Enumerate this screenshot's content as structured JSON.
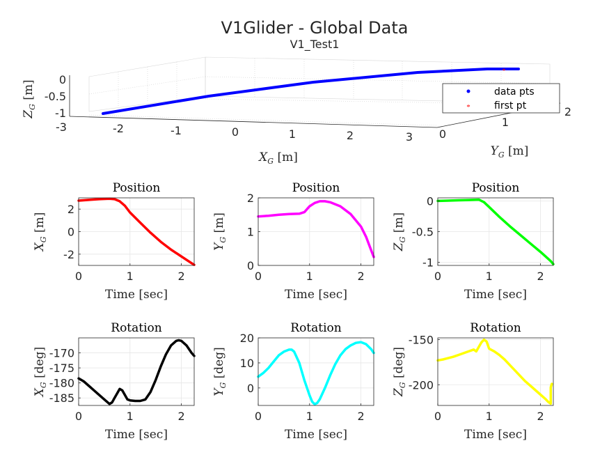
{
  "figure": {
    "title": "V1Glider - Global Data",
    "subtitle": "V1_Test1"
  },
  "plot3d": {
    "xlabel_main": "X",
    "xlabel_sub": "G",
    "xlabel_unit": " [m]",
    "ylabel_main": "Y",
    "ylabel_sub": "G",
    "ylabel_unit": " [m]",
    "zlabel_main": "Z",
    "zlabel_sub": "G",
    "zlabel_unit": " [m]",
    "x_ticks": [
      "-3",
      "-2",
      "-1",
      "0",
      "1",
      "2",
      "3"
    ],
    "y_ticks": [
      "0",
      "1",
      "2"
    ],
    "z_ticks": [
      "0",
      "-0.5",
      "-1"
    ],
    "legend": {
      "data_label": "data pts",
      "first_label": "first pt",
      "position": "top-right"
    },
    "colors": {
      "data": "#0000ff",
      "first": "#ff0000"
    }
  },
  "chart_data": [
    {
      "type": "scatter",
      "title": "Position",
      "xlabel": "Time [sec]",
      "ylabel_main": "X",
      "ylabel_sub": "G",
      "ylabel_unit": " [m]",
      "xlim": [
        0,
        2.25
      ],
      "ylim": [
        -3,
        3
      ],
      "x_ticks": [
        "0",
        "1",
        "2"
      ],
      "y_ticks": [
        "2",
        "0",
        "-2"
      ],
      "color": "#ff0000",
      "x": [
        0,
        0.2,
        0.4,
        0.6,
        0.7,
        0.8,
        0.9,
        1.0,
        1.2,
        1.4,
        1.6,
        1.8,
        2.0,
        2.2,
        2.25
      ],
      "y": [
        2.75,
        2.82,
        2.88,
        2.92,
        2.88,
        2.7,
        2.3,
        1.7,
        0.8,
        -0.1,
        -0.9,
        -1.6,
        -2.2,
        -2.8,
        -2.95
      ]
    },
    {
      "type": "scatter",
      "title": "Position",
      "xlabel": "Time [sec]",
      "ylabel_main": "Y",
      "ylabel_sub": "G",
      "ylabel_unit": " [m]",
      "xlim": [
        0,
        2.25
      ],
      "ylim": [
        0,
        2
      ],
      "x_ticks": [
        "0",
        "1",
        "2"
      ],
      "y_ticks": [
        "2",
        "1",
        "0"
      ],
      "color": "#ff00ff",
      "x": [
        0,
        0.2,
        0.4,
        0.6,
        0.8,
        0.9,
        1.0,
        1.1,
        1.2,
        1.3,
        1.4,
        1.6,
        1.8,
        2.0,
        2.1,
        2.2,
        2.25
      ],
      "y": [
        1.45,
        1.47,
        1.5,
        1.52,
        1.53,
        1.58,
        1.75,
        1.85,
        1.9,
        1.9,
        1.87,
        1.75,
        1.52,
        1.15,
        0.85,
        0.45,
        0.25
      ]
    },
    {
      "type": "scatter",
      "title": "Position",
      "xlabel": "Time [sec]",
      "ylabel_main": "Z",
      "ylabel_sub": "G",
      "ylabel_unit": " [m]",
      "xlim": [
        0,
        2.25
      ],
      "ylim": [
        -1.05,
        0.05
      ],
      "x_ticks": [
        "0",
        "1",
        "2"
      ],
      "y_ticks": [
        "0",
        "-0.5",
        "-1"
      ],
      "color": "#00ff00",
      "x": [
        0,
        0.2,
        0.4,
        0.6,
        0.8,
        0.9,
        1.0,
        1.2,
        1.4,
        1.6,
        1.8,
        2.0,
        2.2,
        2.25
      ],
      "y": [
        0,
        0.005,
        0.01,
        0.015,
        0.02,
        -0.02,
        -0.1,
        -0.26,
        -0.41,
        -0.55,
        -0.69,
        -0.83,
        -0.98,
        -1.03
      ]
    },
    {
      "type": "scatter",
      "title": "Rotation",
      "xlabel": "Time [sec]",
      "ylabel_main": "X",
      "ylabel_sub": "G",
      "ylabel_unit": " [deg]",
      "xlim": [
        0,
        2.25
      ],
      "ylim": [
        -187.5,
        -165
      ],
      "x_ticks": [
        "0",
        "1",
        "2"
      ],
      "y_ticks": [
        "-170",
        "-175",
        "-180",
        "-185"
      ],
      "color": "#000000",
      "x": [
        0,
        0.1,
        0.2,
        0.3,
        0.4,
        0.5,
        0.6,
        0.65,
        0.7,
        0.75,
        0.8,
        0.85,
        0.9,
        0.95,
        1.0,
        1.1,
        1.2,
        1.3,
        1.4,
        1.5,
        1.6,
        1.7,
        1.8,
        1.9,
        1.95,
        2.0,
        2.1,
        2.2,
        2.25
      ],
      "y": [
        -178.5,
        -179.5,
        -181,
        -182.5,
        -184,
        -185.5,
        -187,
        -186.5,
        -185,
        -183.5,
        -182,
        -182.5,
        -184,
        -185.5,
        -185.8,
        -186,
        -186,
        -185.5,
        -183,
        -179,
        -174.5,
        -170.5,
        -167.5,
        -166,
        -165.8,
        -166,
        -167.5,
        -170,
        -171
      ]
    },
    {
      "type": "scatter",
      "title": "Rotation",
      "xlabel": "Time [sec]",
      "ylabel_main": "Y",
      "ylabel_sub": "G",
      "ylabel_unit": " [deg]",
      "xlim": [
        0,
        2.25
      ],
      "ylim": [
        -7,
        20
      ],
      "x_ticks": [
        "0",
        "1",
        "2"
      ],
      "y_ticks": [
        "20",
        "10",
        "0"
      ],
      "color": "#00ffff",
      "x": [
        0,
        0.1,
        0.2,
        0.3,
        0.4,
        0.5,
        0.6,
        0.65,
        0.7,
        0.8,
        0.9,
        1.0,
        1.05,
        1.1,
        1.15,
        1.2,
        1.3,
        1.4,
        1.5,
        1.6,
        1.7,
        1.8,
        1.9,
        2.0,
        2.1,
        2.2,
        2.25
      ],
      "y": [
        4.5,
        6,
        8,
        10.5,
        13,
        14.5,
        15.3,
        15.3,
        14.5,
        10,
        3,
        -3,
        -5.5,
        -6.5,
        -6,
        -4.5,
        0,
        5,
        9.5,
        13,
        15.5,
        17,
        18,
        18.3,
        17.5,
        15.5,
        14
      ]
    },
    {
      "type": "scatter",
      "title": "Rotation",
      "xlabel": "Time [sec]",
      "ylabel_main": "Z",
      "ylabel_sub": "G",
      "ylabel_unit": " [deg]",
      "xlim": [
        0,
        2.25
      ],
      "ylim": [
        -223,
        -148
      ],
      "x_ticks": [
        "0",
        "1",
        "2"
      ],
      "y_ticks": [
        "-150",
        "-200"
      ],
      "color": "#ffff00",
      "x": [
        0,
        0.1,
        0.2,
        0.3,
        0.4,
        0.5,
        0.6,
        0.7,
        0.75,
        0.8,
        0.85,
        0.9,
        0.95,
        1.0,
        1.1,
        1.2,
        1.3,
        1.4,
        1.5,
        1.6,
        1.7,
        1.8,
        1.9,
        2.0,
        2.1,
        2.15,
        2.2,
        2.2,
        2.22
      ],
      "y": [
        -173,
        -172,
        -170.5,
        -169,
        -167,
        -165,
        -163,
        -161,
        -163,
        -158,
        -153,
        -150,
        -152,
        -160,
        -163,
        -167,
        -172,
        -178,
        -184,
        -190,
        -196,
        -201,
        -206,
        -211,
        -216,
        -219,
        -221,
        -203,
        -199
      ]
    }
  ]
}
